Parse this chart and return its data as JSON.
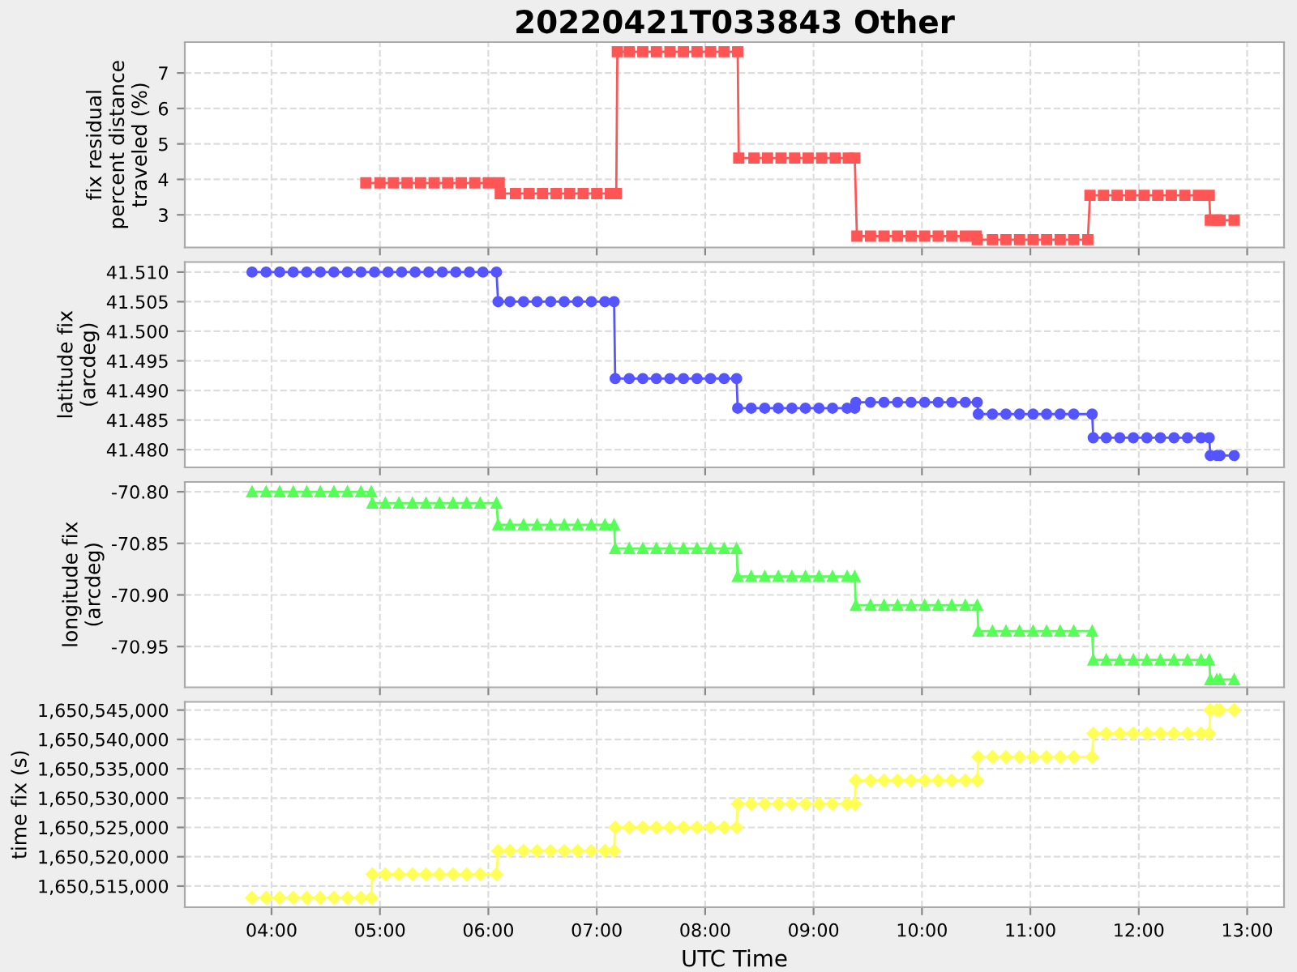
{
  "chart_data": [
    {
      "type": "line",
      "title": "20220421T033843 Other",
      "ylabel": "fix residual percent distance traveled (%)",
      "xlim": [
        3.2,
        13.34
      ],
      "ylim": [
        2.08,
        7.87
      ],
      "yticks": [
        3,
        4,
        5,
        6,
        7
      ],
      "grid": true,
      "tick_labels": "y",
      "marker": "square",
      "series": [
        {
          "color": "#ff5555",
          "x": [
            4.87,
            5.0,
            5.125,
            5.25,
            5.375,
            5.5,
            5.625,
            5.75,
            5.875,
            6.0,
            6.1,
            6.11,
            6.25,
            6.375,
            6.5,
            6.625,
            6.75,
            6.875,
            7.0,
            7.125,
            7.18,
            7.19,
            7.3,
            7.425,
            7.55,
            7.675,
            7.8,
            7.925,
            8.05,
            8.175,
            8.3,
            8.31,
            8.45,
            8.575,
            8.7,
            8.825,
            8.95,
            9.075,
            9.2,
            9.32,
            9.38,
            9.4,
            9.525,
            9.65,
            9.775,
            9.9,
            10.025,
            10.15,
            10.275,
            10.4,
            10.5,
            10.51,
            10.65,
            10.775,
            10.9,
            11.025,
            11.15,
            11.275,
            11.4,
            11.53,
            11.55,
            11.675,
            11.8,
            11.925,
            12.05,
            12.175,
            12.3,
            12.425,
            12.55,
            12.65,
            12.66,
            12.72,
            12.75,
            12.88
          ],
          "values": [
            3.9,
            3.9,
            3.9,
            3.9,
            3.9,
            3.9,
            3.9,
            3.9,
            3.9,
            3.9,
            3.9,
            3.6,
            3.6,
            3.6,
            3.6,
            3.6,
            3.6,
            3.6,
            3.6,
            3.6,
            3.6,
            7.6,
            7.6,
            7.6,
            7.6,
            7.6,
            7.6,
            7.6,
            7.6,
            7.6,
            7.6,
            4.6,
            4.6,
            4.6,
            4.6,
            4.6,
            4.6,
            4.6,
            4.6,
            4.6,
            4.6,
            2.4,
            2.4,
            2.4,
            2.4,
            2.4,
            2.4,
            2.4,
            2.4,
            2.4,
            2.4,
            2.3,
            2.3,
            2.3,
            2.3,
            2.3,
            2.3,
            2.3,
            2.3,
            2.3,
            3.55,
            3.55,
            3.55,
            3.55,
            3.55,
            3.55,
            3.55,
            3.55,
            3.55,
            3.55,
            2.85,
            2.85,
            2.85,
            2.85
          ]
        }
      ]
    },
    {
      "type": "line",
      "ylabel": "latitude fix (arcdeg)",
      "xlim": [
        3.2,
        13.34
      ],
      "ylim": [
        41.477,
        41.5117
      ],
      "yticks": [
        {
          "value": 41.48,
          "label": "41.480"
        },
        {
          "value": 41.485,
          "label": "41.485"
        },
        {
          "value": 41.49,
          "label": "41.490"
        },
        {
          "value": 41.495,
          "label": "41.495"
        },
        {
          "value": 41.5,
          "label": "41.500"
        },
        {
          "value": 41.505,
          "label": "41.505"
        },
        {
          "value": 41.51,
          "label": "41.510"
        }
      ],
      "grid": true,
      "tick_labels": "y",
      "marker": "circle",
      "series": [
        {
          "color": "#5555ff",
          "x": [
            3.82,
            3.95,
            4.075,
            4.2,
            4.325,
            4.45,
            4.575,
            4.7,
            4.825,
            4.95,
            5.075,
            5.2,
            5.325,
            5.45,
            5.575,
            5.7,
            5.825,
            5.95,
            6.075,
            6.09,
            6.2,
            6.325,
            6.45,
            6.575,
            6.7,
            6.825,
            6.95,
            7.075,
            7.16,
            7.17,
            7.3,
            7.425,
            7.55,
            7.675,
            7.8,
            7.925,
            8.05,
            8.175,
            8.29,
            8.3,
            8.425,
            8.55,
            8.675,
            8.8,
            8.925,
            9.05,
            9.175,
            9.31,
            9.38,
            9.39,
            9.525,
            9.65,
            9.775,
            9.9,
            10.025,
            10.15,
            10.275,
            10.4,
            10.51,
            10.52,
            10.65,
            10.775,
            10.9,
            11.025,
            11.15,
            11.275,
            11.4,
            11.57,
            11.58,
            11.7,
            11.825,
            11.95,
            12.075,
            12.2,
            12.325,
            12.45,
            12.575,
            12.65,
            12.66,
            12.72,
            12.75,
            12.88
          ],
          "values": [
            41.51,
            41.51,
            41.51,
            41.51,
            41.51,
            41.51,
            41.51,
            41.51,
            41.51,
            41.51,
            41.51,
            41.51,
            41.51,
            41.51,
            41.51,
            41.51,
            41.51,
            41.51,
            41.51,
            41.505,
            41.505,
            41.505,
            41.505,
            41.505,
            41.505,
            41.505,
            41.505,
            41.505,
            41.505,
            41.492,
            41.492,
            41.492,
            41.492,
            41.492,
            41.492,
            41.492,
            41.492,
            41.492,
            41.492,
            41.487,
            41.487,
            41.487,
            41.487,
            41.487,
            41.487,
            41.487,
            41.487,
            41.487,
            41.487,
            41.488,
            41.488,
            41.488,
            41.488,
            41.488,
            41.488,
            41.488,
            41.488,
            41.488,
            41.488,
            41.486,
            41.486,
            41.486,
            41.486,
            41.486,
            41.486,
            41.486,
            41.486,
            41.486,
            41.482,
            41.482,
            41.482,
            41.482,
            41.482,
            41.482,
            41.482,
            41.482,
            41.482,
            41.482,
            41.479,
            41.479,
            41.479,
            41.479
          ]
        }
      ]
    },
    {
      "type": "line",
      "ylabel": "longitude fix (arcdeg)",
      "xlim": [
        3.2,
        13.34
      ],
      "ylim": [
        -70.9895,
        -70.7905
      ],
      "yticks": [
        {
          "value": -70.95,
          "label": "-70.95"
        },
        {
          "value": -70.9,
          "label": "-70.90"
        },
        {
          "value": -70.85,
          "label": "-70.85"
        },
        {
          "value": -70.8,
          "label": "-70.80"
        }
      ],
      "grid": true,
      "tick_labels": "y",
      "marker": "triangle",
      "series": [
        {
          "color": "#55ff55",
          "x": [
            3.82,
            3.95,
            4.075,
            4.2,
            4.325,
            4.45,
            4.575,
            4.7,
            4.825,
            4.92,
            4.93,
            5.05,
            5.175,
            5.3,
            5.425,
            5.55,
            5.675,
            5.8,
            5.925,
            6.075,
            6.09,
            6.2,
            6.325,
            6.45,
            6.575,
            6.7,
            6.825,
            6.95,
            7.075,
            7.16,
            7.17,
            7.3,
            7.425,
            7.55,
            7.675,
            7.8,
            7.925,
            8.05,
            8.175,
            8.29,
            8.3,
            8.425,
            8.55,
            8.675,
            8.8,
            8.925,
            9.05,
            9.175,
            9.31,
            9.38,
            9.39,
            9.525,
            9.65,
            9.775,
            9.9,
            10.025,
            10.15,
            10.275,
            10.4,
            10.51,
            10.52,
            10.65,
            10.775,
            10.9,
            11.025,
            11.15,
            11.275,
            11.4,
            11.57,
            11.58,
            11.7,
            11.825,
            11.95,
            12.075,
            12.2,
            12.325,
            12.45,
            12.575,
            12.65,
            12.66,
            12.72,
            12.75,
            12.88
          ],
          "values": [
            -70.8,
            -70.8,
            -70.8,
            -70.8,
            -70.8,
            -70.8,
            -70.8,
            -70.8,
            -70.8,
            -70.8,
            -70.811,
            -70.811,
            -70.811,
            -70.811,
            -70.811,
            -70.811,
            -70.811,
            -70.811,
            -70.811,
            -70.811,
            -70.832,
            -70.832,
            -70.832,
            -70.832,
            -70.832,
            -70.832,
            -70.832,
            -70.832,
            -70.832,
            -70.832,
            -70.855,
            -70.855,
            -70.855,
            -70.855,
            -70.855,
            -70.855,
            -70.855,
            -70.855,
            -70.855,
            -70.855,
            -70.882,
            -70.882,
            -70.882,
            -70.882,
            -70.882,
            -70.882,
            -70.882,
            -70.882,
            -70.882,
            -70.882,
            -70.91,
            -70.91,
            -70.91,
            -70.91,
            -70.91,
            -70.91,
            -70.91,
            -70.91,
            -70.91,
            -70.91,
            -70.935,
            -70.935,
            -70.935,
            -70.935,
            -70.935,
            -70.935,
            -70.935,
            -70.935,
            -70.935,
            -70.963,
            -70.963,
            -70.963,
            -70.963,
            -70.963,
            -70.963,
            -70.963,
            -70.963,
            -70.963,
            -70.963,
            -70.982,
            -70.982,
            -70.982,
            -70.982
          ]
        }
      ]
    },
    {
      "type": "line",
      "xlabel": "UTC Time",
      "ylabel": "time fix (s)",
      "xlim": [
        3.2,
        13.34
      ],
      "xticks": [
        {
          "value": 4,
          "label": "04:00"
        },
        {
          "value": 5,
          "label": "05:00"
        },
        {
          "value": 6,
          "label": "06:00"
        },
        {
          "value": 7,
          "label": "07:00"
        },
        {
          "value": 8,
          "label": "08:00"
        },
        {
          "value": 9,
          "label": "09:00"
        },
        {
          "value": 10,
          "label": "10:00"
        },
        {
          "value": 11,
          "label": "11:00"
        },
        {
          "value": 12,
          "label": "12:00"
        },
        {
          "value": 13,
          "label": "13:00"
        }
      ],
      "ylim": [
        1650511400,
        1650546400
      ],
      "yticks": [
        {
          "value": 1650515000,
          "label": "1,650,515,000"
        },
        {
          "value": 1650520000,
          "label": "1,650,520,000"
        },
        {
          "value": 1650525000,
          "label": "1,650,525,000"
        },
        {
          "value": 1650530000,
          "label": "1,650,530,000"
        },
        {
          "value": 1650535000,
          "label": "1,650,535,000"
        },
        {
          "value": 1650540000,
          "label": "1,650,540,000"
        },
        {
          "value": 1650545000,
          "label": "1,650,545,000"
        }
      ],
      "grid": true,
      "marker": "diamond",
      "series": [
        {
          "color": "#ffff55",
          "x": [
            3.82,
            3.95,
            4.075,
            4.2,
            4.325,
            4.45,
            4.575,
            4.7,
            4.825,
            4.92,
            4.93,
            5.05,
            5.175,
            5.3,
            5.425,
            5.55,
            5.675,
            5.8,
            5.925,
            6.075,
            6.09,
            6.2,
            6.325,
            6.45,
            6.575,
            6.7,
            6.825,
            6.95,
            7.075,
            7.16,
            7.17,
            7.3,
            7.425,
            7.55,
            7.675,
            7.8,
            7.925,
            8.05,
            8.175,
            8.29,
            8.3,
            8.425,
            8.55,
            8.675,
            8.8,
            8.925,
            9.05,
            9.175,
            9.31,
            9.38,
            9.39,
            9.525,
            9.65,
            9.775,
            9.9,
            10.025,
            10.15,
            10.275,
            10.4,
            10.51,
            10.52,
            10.65,
            10.775,
            10.9,
            11.025,
            11.15,
            11.275,
            11.4,
            11.57,
            11.58,
            11.7,
            11.825,
            11.95,
            12.075,
            12.2,
            12.325,
            12.45,
            12.575,
            12.65,
            12.66,
            12.72,
            12.75,
            12.88
          ],
          "values": [
            1650513000,
            1650513000,
            1650513000,
            1650513000,
            1650513000,
            1650513000,
            1650513000,
            1650513000,
            1650513000,
            1650513000,
            1650517000,
            1650517000,
            1650517000,
            1650517000,
            1650517000,
            1650517000,
            1650517000,
            1650517000,
            1650517000,
            1650517000,
            1650521000,
            1650521000,
            1650521000,
            1650521000,
            1650521000,
            1650521000,
            1650521000,
            1650521000,
            1650521000,
            1650521000,
            1650525000,
            1650525000,
            1650525000,
            1650525000,
            1650525000,
            1650525000,
            1650525000,
            1650525000,
            1650525000,
            1650525000,
            1650529000,
            1650529000,
            1650529000,
            1650529000,
            1650529000,
            1650529000,
            1650529000,
            1650529000,
            1650529000,
            1650529000,
            1650533000,
            1650533000,
            1650533000,
            1650533000,
            1650533000,
            1650533000,
            1650533000,
            1650533000,
            1650533000,
            1650533000,
            1650537000,
            1650537000,
            1650537000,
            1650537000,
            1650537000,
            1650537000,
            1650537000,
            1650537000,
            1650537000,
            1650541000,
            1650541000,
            1650541000,
            1650541000,
            1650541000,
            1650541000,
            1650541000,
            1650541000,
            1650541000,
            1650541000,
            1650545000,
            1650545000,
            1650545000,
            1650545000
          ]
        }
      ]
    }
  ]
}
